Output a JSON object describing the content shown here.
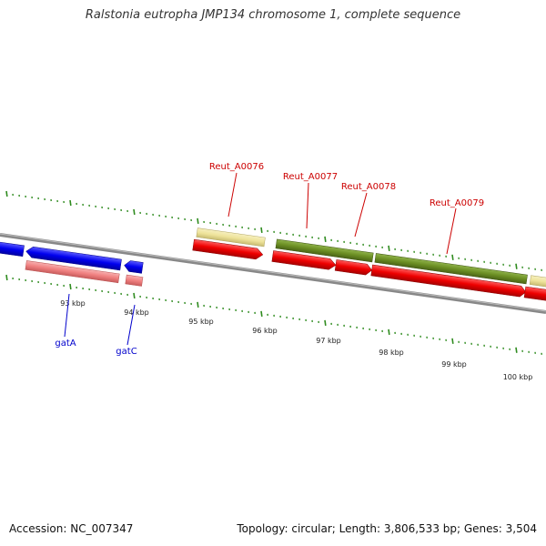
{
  "title": "Ralstonia eutropha JMP134 chromosome 1, complete sequence",
  "footer": {
    "accession": "Accession: NC_007347",
    "summary": "Topology: circular; Length: 3,806,533 bp; Genes: 3,504"
  },
  "colors": {
    "backbone": "#888888",
    "tick": "#2e8b1e",
    "blue_gene": "#0000ee",
    "pink_gene": "#f08080",
    "yellow_gene": "#eee39a",
    "olive_gene": "#6b8e23",
    "red_gene": "#ee0000",
    "red_label": "#cc0000",
    "blue_label": "#0000cc"
  },
  "scale": {
    "labels": [
      "93 kbp",
      "94 kbp",
      "95 kbp",
      "96 kbp",
      "97 kbp",
      "98 kbp",
      "99 kbp",
      "100 kbp"
    ]
  },
  "gene_labels": {
    "top": [
      "Reut_A0076",
      "Reut_A0077",
      "Reut_A0078",
      "Reut_A0079"
    ],
    "bottom": [
      "gatA",
      "gatC"
    ]
  }
}
